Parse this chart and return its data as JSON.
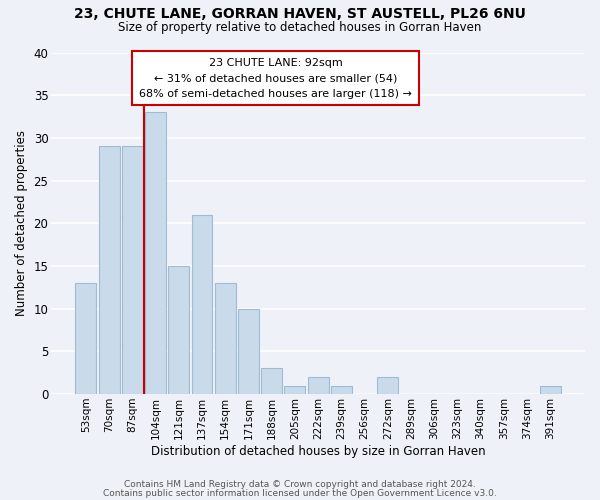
{
  "title": "23, CHUTE LANE, GORRAN HAVEN, ST AUSTELL, PL26 6NU",
  "subtitle": "Size of property relative to detached houses in Gorran Haven",
  "xlabel": "Distribution of detached houses by size in Gorran Haven",
  "ylabel": "Number of detached properties",
  "bar_labels": [
    "53sqm",
    "70sqm",
    "87sqm",
    "104sqm",
    "121sqm",
    "137sqm",
    "154sqm",
    "171sqm",
    "188sqm",
    "205sqm",
    "222sqm",
    "239sqm",
    "256sqm",
    "272sqm",
    "289sqm",
    "306sqm",
    "323sqm",
    "340sqm",
    "357sqm",
    "374sqm",
    "391sqm"
  ],
  "bar_values": [
    13,
    29,
    29,
    33,
    15,
    21,
    13,
    10,
    3,
    1,
    2,
    1,
    0,
    2,
    0,
    0,
    0,
    0,
    0,
    0,
    1
  ],
  "bar_color": "#c9daea",
  "bar_edge_color": "#a0bcd4",
  "vline_x_index": 2,
  "vline_color": "#cc0000",
  "ylim": [
    0,
    40
  ],
  "annotation_title": "23 CHUTE LANE: 92sqm",
  "annotation_line1": "← 31% of detached houses are smaller (54)",
  "annotation_line2": "68% of semi-detached houses are larger (118) →",
  "annotation_box_color": "#ffffff",
  "annotation_box_edge": "#cc0000",
  "footer1": "Contains HM Land Registry data © Crown copyright and database right 2024.",
  "footer2": "Contains public sector information licensed under the Open Government Licence v3.0.",
  "background_color": "#eef2f8",
  "grid_color": "#ffffff",
  "title_fontsize": 10,
  "subtitle_fontsize": 8.5,
  "yticks": [
    0,
    5,
    10,
    15,
    20,
    25,
    30,
    35,
    40
  ]
}
